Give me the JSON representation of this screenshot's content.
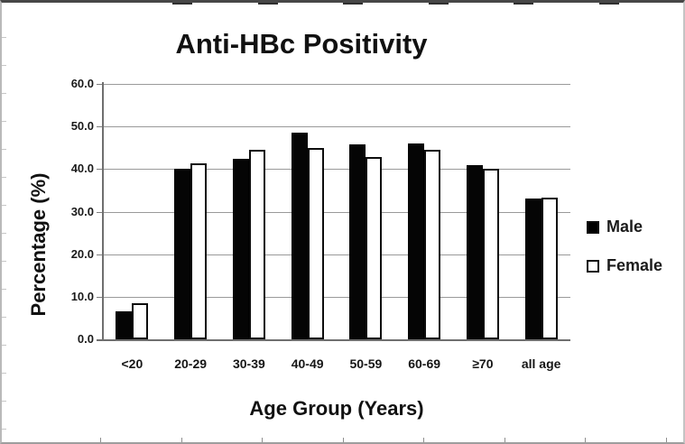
{
  "window": {
    "background": "#ffffff",
    "accent_black": "#000000",
    "grid_color": "#9a9a9a"
  },
  "chart_data": {
    "type": "bar",
    "title": "Anti-HBc Positivity",
    "xlabel": "Age Group (Years)",
    "ylabel": "Percentage (%)",
    "categories": [
      "<20",
      "20-29",
      "30-39",
      "40-49",
      "50-59",
      "60-69",
      "≥70",
      "all age"
    ],
    "series": [
      {
        "name": "Male",
        "fill": "#000000",
        "values": [
          6.6,
          40.0,
          42.3,
          48.6,
          45.8,
          46.1,
          41.0,
          33.0
        ]
      },
      {
        "name": "Female",
        "fill": "#ffffff",
        "values": [
          8.5,
          41.4,
          44.5,
          44.9,
          42.8,
          44.6,
          40.0,
          33.3
        ]
      }
    ],
    "ylim": [
      0,
      60
    ],
    "ytick_step": 10,
    "ytick_labels": [
      "0.0",
      "10.0",
      "20.0",
      "30.0",
      "40.0",
      "50.0",
      "60.0"
    ],
    "grid": "horizontal",
    "legend_position": "right"
  }
}
